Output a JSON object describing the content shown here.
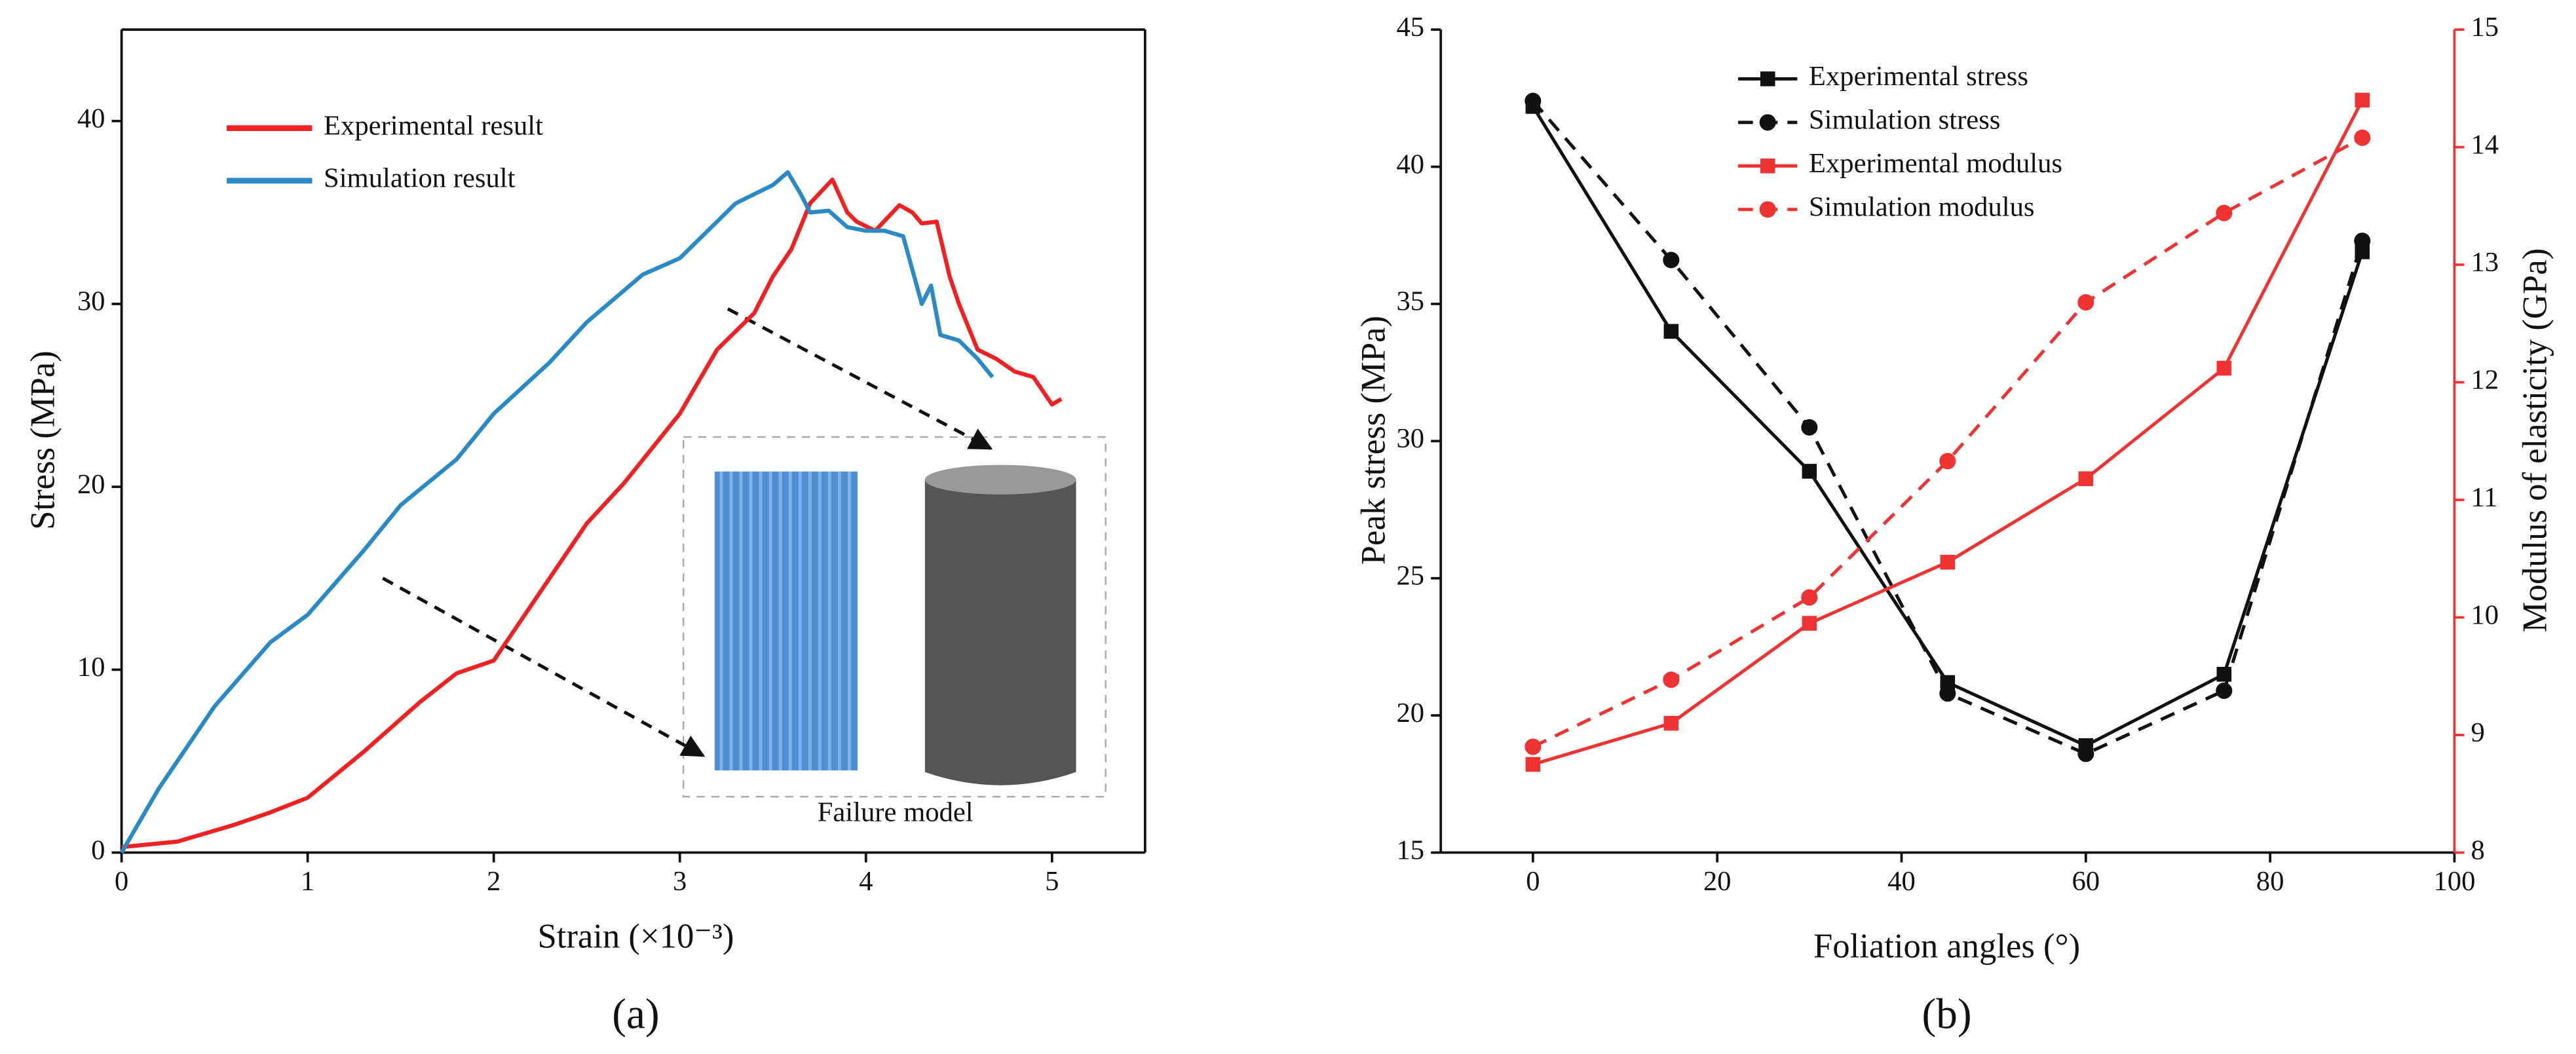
{
  "chart_data": [
    {
      "type": "line",
      "x_label": "Strain (×10⁻³)",
      "y_label": "Stress (MPa)",
      "caption": "(a)",
      "annotation": "Failure model",
      "xlim": [
        0,
        5.5
      ],
      "xticks": [
        0,
        1,
        2,
        3,
        4,
        5
      ],
      "ylim": [
        0,
        45
      ],
      "yticks": [
        0,
        10,
        20,
        30,
        40
      ],
      "series": [
        {
          "name": "Experimental result",
          "color": "#ee2222",
          "x": [
            0,
            0.3,
            0.6,
            0.8,
            1.0,
            1.3,
            1.6,
            1.8,
            2.0,
            2.2,
            2.5,
            2.7,
            3.0,
            3.2,
            3.4,
            3.5,
            3.6,
            3.7,
            3.82,
            3.9,
            3.95,
            4.05,
            4.18,
            4.25,
            4.3,
            4.38,
            4.45,
            4.5,
            4.6,
            4.7,
            4.8,
            4.9,
            5.0,
            5.05
          ],
          "values": [
            0.3,
            0.6,
            1.5,
            2.2,
            3.0,
            5.5,
            8.2,
            9.8,
            10.5,
            13.5,
            18.0,
            20.2,
            24.0,
            27.5,
            29.5,
            31.5,
            33.0,
            35.5,
            36.8,
            35.0,
            34.5,
            34.0,
            35.4,
            35.0,
            34.4,
            34.5,
            31.5,
            30.0,
            27.5,
            27.0,
            26.3,
            26.0,
            24.5,
            24.8
          ]
        },
        {
          "name": "Simulation result",
          "color": "#2a8ac4",
          "x": [
            0,
            0.2,
            0.5,
            0.8,
            1.0,
            1.3,
            1.5,
            1.8,
            2.0,
            2.3,
            2.5,
            2.8,
            3.0,
            3.2,
            3.3,
            3.5,
            3.58,
            3.65,
            3.7,
            3.8,
            3.9,
            4.0,
            4.1,
            4.2,
            4.3,
            4.35,
            4.4,
            4.5,
            4.6,
            4.68
          ],
          "values": [
            0,
            3.5,
            8.0,
            11.5,
            13.0,
            16.5,
            19.0,
            21.5,
            24.0,
            26.8,
            29.0,
            31.6,
            32.5,
            34.5,
            35.5,
            36.5,
            37.2,
            36.0,
            35.0,
            35.1,
            34.2,
            34.0,
            34.0,
            33.7,
            30.0,
            31.0,
            28.3,
            28.0,
            27.0,
            26.0
          ]
        }
      ],
      "legend": "upper left"
    },
    {
      "type": "line",
      "x_label": "Foliation angles (°)",
      "y_label": "Peak stress (MPa)",
      "y2_label": "Modulus of elasticity (GPa)",
      "caption": "(b)",
      "x": [
        0,
        15,
        30,
        45,
        60,
        75,
        90
      ],
      "xlim": [
        -10,
        100
      ],
      "xticks": [
        0,
        20,
        40,
        60,
        80,
        100
      ],
      "ylim": [
        15,
        45
      ],
      "yticks": [
        15,
        20,
        25,
        30,
        35,
        40,
        45
      ],
      "y2lim": [
        8,
        15
      ],
      "y2ticks": [
        8,
        9,
        10,
        11,
        12,
        13,
        14,
        15
      ],
      "y2color": "#ee3333",
      "series": [
        {
          "name": "Experimental stress",
          "color": "#111111",
          "marker": "square",
          "line_style": "solid",
          "values": [
            42.2,
            34.0,
            28.9,
            21.2,
            18.9,
            21.5,
            36.9
          ]
        },
        {
          "name": "Simulation stress",
          "color": "#111111",
          "marker": "circle",
          "line_style": "dashed",
          "values": [
            42.4,
            36.6,
            30.5,
            20.8,
            18.6,
            20.9,
            37.3
          ]
        },
        {
          "name": "Experimental modulus",
          "color": "#ee3333",
          "marker": "square",
          "line_style": "solid",
          "axis": "y2",
          "values": [
            8.75,
            9.1,
            9.95,
            10.47,
            11.18,
            12.12,
            14.4
          ]
        },
        {
          "name": "Simulation modulus",
          "color": "#ee3333",
          "marker": "circle",
          "line_style": "dashed",
          "axis": "y2",
          "values": [
            8.9,
            9.47,
            10.17,
            11.33,
            12.68,
            13.44,
            14.08
          ]
        }
      ],
      "legend": "upper left"
    }
  ]
}
